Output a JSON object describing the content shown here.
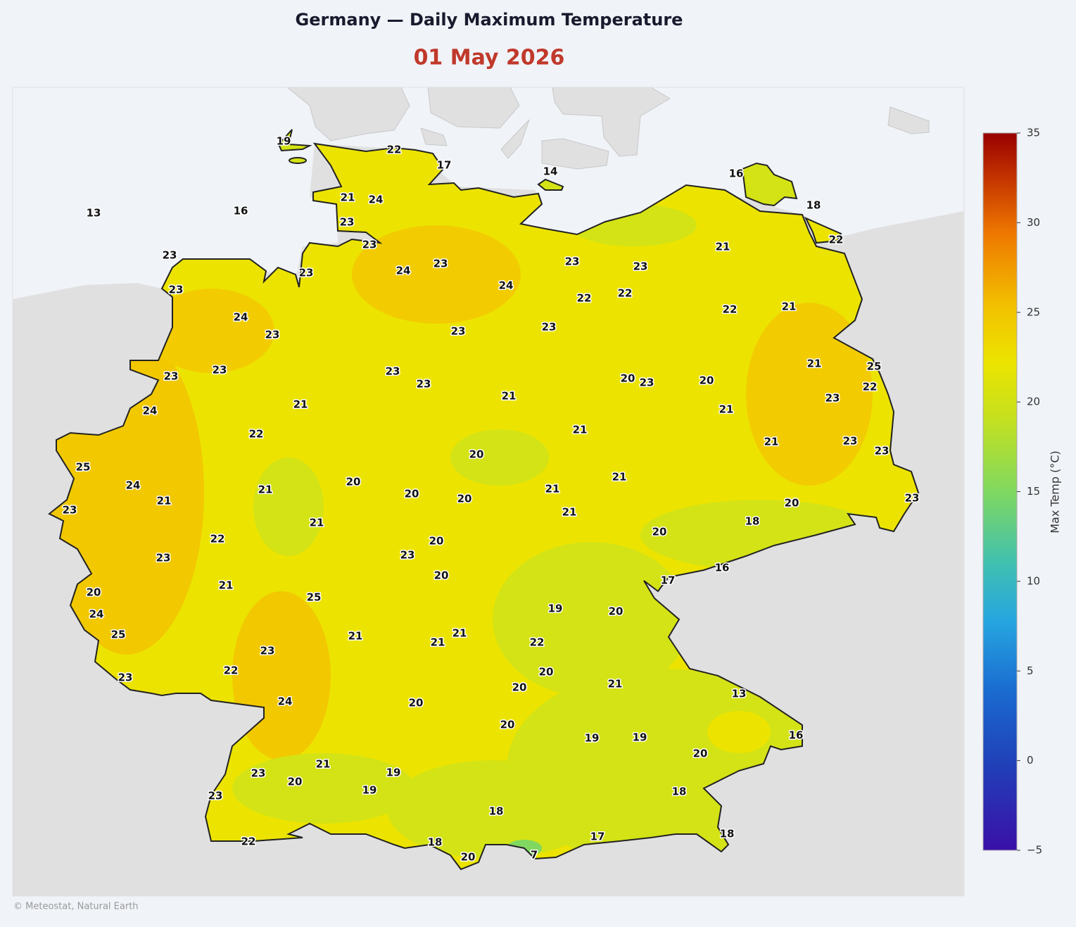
{
  "title": "Germany — Daily Maximum Temperature",
  "date": "01 May 2026",
  "stations": [
    19,
    22,
    17,
    14,
    16,
    18,
    13,
    16,
    21,
    24,
    23,
    23,
    22,
    21,
    23,
    23,
    24,
    23,
    23,
    23,
    23,
    24,
    22,
    22,
    22,
    21,
    24,
    23,
    23,
    23,
    23,
    23,
    23,
    23,
    21,
    25,
    20,
    23,
    20,
    22,
    21,
    23,
    21,
    24,
    21,
    22,
    21,
    21,
    23,
    23,
    20,
    25,
    24,
    20,
    21,
    20,
    20,
    21,
    21,
    21,
    23,
    20,
    23,
    21,
    21,
    18,
    20,
    22,
    20,
    23,
    23,
    16,
    17,
    21,
    20,
    20,
    25,
    19,
    20,
    24,
    25,
    21,
    21,
    21,
    22,
    23,
    22,
    20,
    23,
    20,
    21,
    13,
    24,
    20,
    20,
    19,
    19,
    16,
    20,
    21,
    23,
    19,
    20,
    19,
    23,
    18,
    18,
    17,
    18,
    22,
    18,
    20,
    7
  ],
  "colorbar": {
    "label": "Max Temp (°C)",
    "lim": [
      -5,
      35
    ],
    "ticks": [
      {
        "value": -5,
        "label": "−5"
      },
      0,
      5,
      10,
      15,
      20,
      25,
      30,
      35
    ]
  },
  "attribution": "© Meteostat, Natural Earth"
}
